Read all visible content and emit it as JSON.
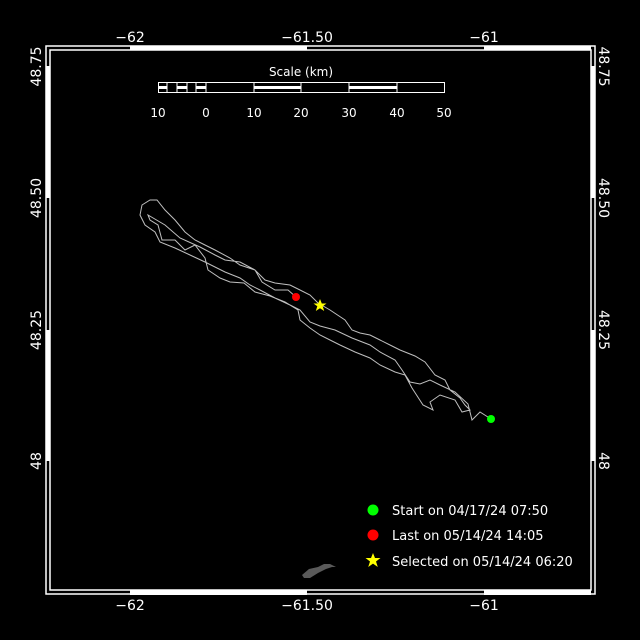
{
  "map": {
    "x_ticks": [
      "−62",
      "−61.50",
      "−61"
    ],
    "y_ticks": [
      "48.75",
      "48.50",
      "48.25",
      "48"
    ],
    "colors": {
      "background": "#000000",
      "frame": "#ffffff",
      "track": "#bfbfbf",
      "land": "#5a5a5a"
    }
  },
  "scale": {
    "title": "Scale (km)",
    "labels": [
      "10",
      "0",
      "10",
      "20",
      "30",
      "40",
      "50"
    ]
  },
  "legend": {
    "items": [
      {
        "label": "Start on 04/17/24 07:50",
        "icon": "circle",
        "color": "#00ff00"
      },
      {
        "label": "Last on 05/14/24 14:05",
        "icon": "circle",
        "color": "#ff0000"
      },
      {
        "label": "Selected on 05/14/24 06:20",
        "icon": "star",
        "color": "#ffff00"
      }
    ]
  }
}
